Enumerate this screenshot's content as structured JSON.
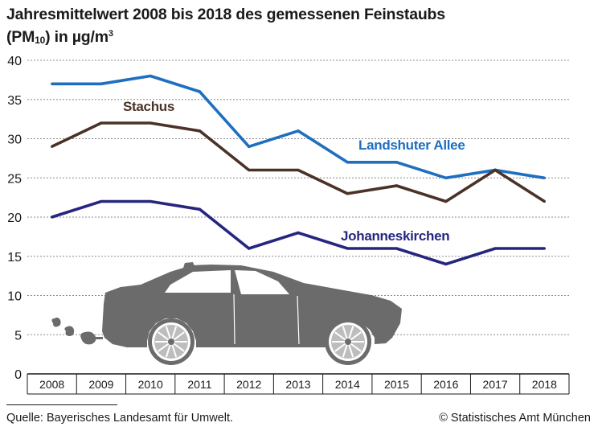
{
  "header": {
    "title_line1": "Jahresmittelwert 2008 bis 2018 des gemessenen Feinstaubs",
    "title_line2_prefix": "(PM",
    "title_line2_sub": "10",
    "title_line2_mid": ") in µg/m",
    "title_line2_sup": "3"
  },
  "footer": {
    "source": "Quelle: Bayerisches Landesamt für Umwelt.",
    "copyright": "© Statistisches Amt München"
  },
  "colors": {
    "landshuter": "#1f6fbf",
    "stachus": "#4a3228",
    "johanneskirchen": "#262680",
    "grid": "#8c8c8c",
    "car": "#6b6b6b"
  },
  "chart_data": {
    "type": "line",
    "title": "Jahresmittelwert 2008 bis 2018 des gemessenen Feinstaubs (PM10) in µg/m3",
    "xlabel": "",
    "ylabel": "",
    "categories": [
      "2008",
      "2009",
      "2010",
      "2011",
      "2012",
      "2013",
      "2014",
      "2015",
      "2016",
      "2017",
      "2018"
    ],
    "ylim": [
      0,
      40
    ],
    "yticks": [
      "0",
      "5",
      "10",
      "15",
      "20",
      "25",
      "30",
      "35",
      "40"
    ],
    "grid": "horizontal dashed",
    "series": [
      {
        "name": "Landshuter Allee",
        "values": [
          37,
          37,
          38,
          36,
          29,
          31,
          27,
          27,
          25,
          26,
          25
        ]
      },
      {
        "name": "Stachus",
        "values": [
          29,
          32,
          32,
          31,
          26,
          26,
          23,
          24,
          22,
          26,
          22
        ]
      },
      {
        "name": "Johanneskirchen",
        "values": [
          20,
          22,
          22,
          21,
          16,
          18,
          16,
          16,
          14,
          16,
          16
        ]
      }
    ]
  }
}
